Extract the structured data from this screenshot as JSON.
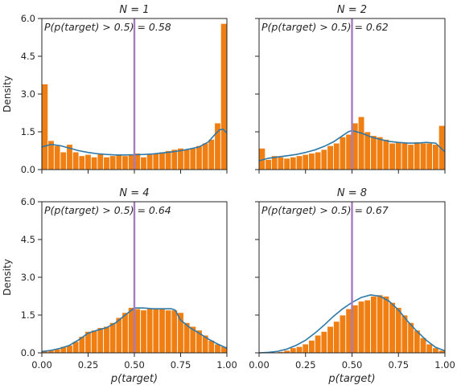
{
  "chart_data": [
    {
      "type": "bar",
      "title": "N = 1",
      "annotation": "P(p(target) > 0.5) = 0.58",
      "ylabel": "Density",
      "xlabel": "",
      "xlim": [
        0,
        1
      ],
      "ylim": [
        0,
        6
      ],
      "yticks": [
        "0.0",
        "1.5",
        "3.0",
        "4.5",
        "6.0"
      ],
      "xticks": [
        "",
        "",
        "",
        "",
        ""
      ],
      "threshold": 0.5,
      "bins": 30,
      "bar_color": "#f07f13",
      "kde_color": "#2e79a8",
      "threshold_color": "#a77bc2",
      "values": [
        3.4,
        1.15,
        0.95,
        0.7,
        1.0,
        0.7,
        0.55,
        0.6,
        0.5,
        0.65,
        0.5,
        0.55,
        0.6,
        0.55,
        0.6,
        0.65,
        0.5,
        0.6,
        0.65,
        0.7,
        0.75,
        0.8,
        0.85,
        0.8,
        0.85,
        0.95,
        1.05,
        1.2,
        1.85,
        5.8
      ],
      "kde": [
        [
          0,
          0.9
        ],
        [
          0.05,
          1.0
        ],
        [
          0.1,
          0.95
        ],
        [
          0.15,
          0.85
        ],
        [
          0.2,
          0.75
        ],
        [
          0.25,
          0.68
        ],
        [
          0.3,
          0.63
        ],
        [
          0.35,
          0.6
        ],
        [
          0.4,
          0.58
        ],
        [
          0.45,
          0.58
        ],
        [
          0.5,
          0.59
        ],
        [
          0.55,
          0.6
        ],
        [
          0.6,
          0.62
        ],
        [
          0.65,
          0.66
        ],
        [
          0.7,
          0.7
        ],
        [
          0.75,
          0.75
        ],
        [
          0.8,
          0.82
        ],
        [
          0.85,
          0.9
        ],
        [
          0.9,
          1.1
        ],
        [
          0.93,
          1.35
        ],
        [
          0.96,
          1.58
        ],
        [
          0.98,
          1.6
        ],
        [
          1.0,
          1.45
        ]
      ]
    },
    {
      "type": "bar",
      "title": "N = 2",
      "annotation": "P(p(target) > 0.5) = 0.62",
      "ylabel": "",
      "xlabel": "",
      "xlim": [
        0,
        1
      ],
      "ylim": [
        0,
        6
      ],
      "yticks": [
        "",
        "",
        "",
        "",
        ""
      ],
      "xticks": [
        "",
        "",
        "",
        "",
        ""
      ],
      "threshold": 0.5,
      "bins": 30,
      "bar_color": "#f07f13",
      "kde_color": "#2e79a8",
      "threshold_color": "#a77bc2",
      "values": [
        0.85,
        0.4,
        0.55,
        0.5,
        0.45,
        0.5,
        0.55,
        0.6,
        0.65,
        0.7,
        0.8,
        0.95,
        1.05,
        1.3,
        1.4,
        1.85,
        2.1,
        1.5,
        1.35,
        1.3,
        1.2,
        1.05,
        1.1,
        1.05,
        1.0,
        1.1,
        1.05,
        1.05,
        1.0,
        1.75
      ],
      "kde": [
        [
          0,
          0.35
        ],
        [
          0.05,
          0.45
        ],
        [
          0.1,
          0.5
        ],
        [
          0.15,
          0.55
        ],
        [
          0.2,
          0.6
        ],
        [
          0.25,
          0.68
        ],
        [
          0.3,
          0.78
        ],
        [
          0.35,
          0.92
        ],
        [
          0.4,
          1.1
        ],
        [
          0.45,
          1.35
        ],
        [
          0.48,
          1.5
        ],
        [
          0.5,
          1.55
        ],
        [
          0.55,
          1.45
        ],
        [
          0.6,
          1.3
        ],
        [
          0.65,
          1.2
        ],
        [
          0.7,
          1.12
        ],
        [
          0.75,
          1.08
        ],
        [
          0.8,
          1.05
        ],
        [
          0.85,
          1.05
        ],
        [
          0.9,
          1.08
        ],
        [
          0.95,
          1.05
        ],
        [
          1.0,
          0.7
        ]
      ]
    },
    {
      "type": "bar",
      "title": "N = 4",
      "annotation": "P(p(target) > 0.5) = 0.64",
      "ylabel": "Density",
      "xlabel": "p(target)",
      "xlim": [
        0,
        1
      ],
      "ylim": [
        0,
        6
      ],
      "yticks": [
        "0.0",
        "1.5",
        "3.0",
        "4.5",
        "6.0"
      ],
      "xticks": [
        "0.00",
        "0.25",
        "0.50",
        "0.75",
        "1.00"
      ],
      "threshold": 0.5,
      "bins": 30,
      "bar_color": "#f07f13",
      "kde_color": "#2e79a8",
      "threshold_color": "#a77bc2",
      "values": [
        0.1,
        0.1,
        0.15,
        0.25,
        0.3,
        0.45,
        0.65,
        0.85,
        0.9,
        1.0,
        1.05,
        1.2,
        1.4,
        1.6,
        1.8,
        1.75,
        1.7,
        1.75,
        1.75,
        1.75,
        1.7,
        1.7,
        1.6,
        1.2,
        1.05,
        0.9,
        0.7,
        0.5,
        0.35,
        0.25
      ],
      "kde": [
        [
          0,
          0.05
        ],
        [
          0.05,
          0.1
        ],
        [
          0.1,
          0.18
        ],
        [
          0.15,
          0.3
        ],
        [
          0.2,
          0.52
        ],
        [
          0.25,
          0.78
        ],
        [
          0.3,
          0.9
        ],
        [
          0.35,
          1.0
        ],
        [
          0.4,
          1.2
        ],
        [
          0.45,
          1.5
        ],
        [
          0.5,
          1.78
        ],
        [
          0.55,
          1.78
        ],
        [
          0.6,
          1.75
        ],
        [
          0.65,
          1.75
        ],
        [
          0.7,
          1.75
        ],
        [
          0.72,
          1.7
        ],
        [
          0.75,
          1.3
        ],
        [
          0.8,
          1.0
        ],
        [
          0.85,
          0.78
        ],
        [
          0.9,
          0.55
        ],
        [
          0.95,
          0.35
        ],
        [
          1.0,
          0.18
        ]
      ]
    },
    {
      "type": "bar",
      "title": "N = 8",
      "annotation": "P(p(target) > 0.5) = 0.67",
      "ylabel": "",
      "xlabel": "p(target)",
      "xlim": [
        0,
        1
      ],
      "ylim": [
        0,
        6
      ],
      "yticks": [
        "",
        "",
        "",
        "",
        ""
      ],
      "xticks": [
        "0.00",
        "0.25",
        "0.50",
        "0.75",
        "1.00"
      ],
      "threshold": 0.5,
      "bins": 30,
      "bar_color": "#f07f13",
      "kde_color": "#2e79a8",
      "threshold_color": "#a77bc2",
      "values": [
        0.0,
        0.0,
        0.02,
        0.05,
        0.1,
        0.2,
        0.25,
        0.35,
        0.5,
        0.7,
        0.85,
        1.05,
        1.25,
        1.5,
        1.75,
        1.9,
        2.05,
        2.1,
        2.25,
        2.3,
        2.25,
        2.0,
        1.8,
        1.5,
        1.2,
        0.9,
        0.6,
        0.35,
        0.2,
        0.1
      ],
      "kde": [
        [
          0,
          0.0
        ],
        [
          0.05,
          0.02
        ],
        [
          0.1,
          0.06
        ],
        [
          0.15,
          0.15
        ],
        [
          0.2,
          0.3
        ],
        [
          0.25,
          0.5
        ],
        [
          0.3,
          0.78
        ],
        [
          0.35,
          1.1
        ],
        [
          0.4,
          1.45
        ],
        [
          0.45,
          1.75
        ],
        [
          0.5,
          2.0
        ],
        [
          0.55,
          2.2
        ],
        [
          0.6,
          2.3
        ],
        [
          0.65,
          2.25
        ],
        [
          0.7,
          2.05
        ],
        [
          0.75,
          1.7
        ],
        [
          0.8,
          1.25
        ],
        [
          0.85,
          0.85
        ],
        [
          0.9,
          0.5
        ],
        [
          0.95,
          0.22
        ],
        [
          1.0,
          0.08
        ]
      ]
    }
  ]
}
